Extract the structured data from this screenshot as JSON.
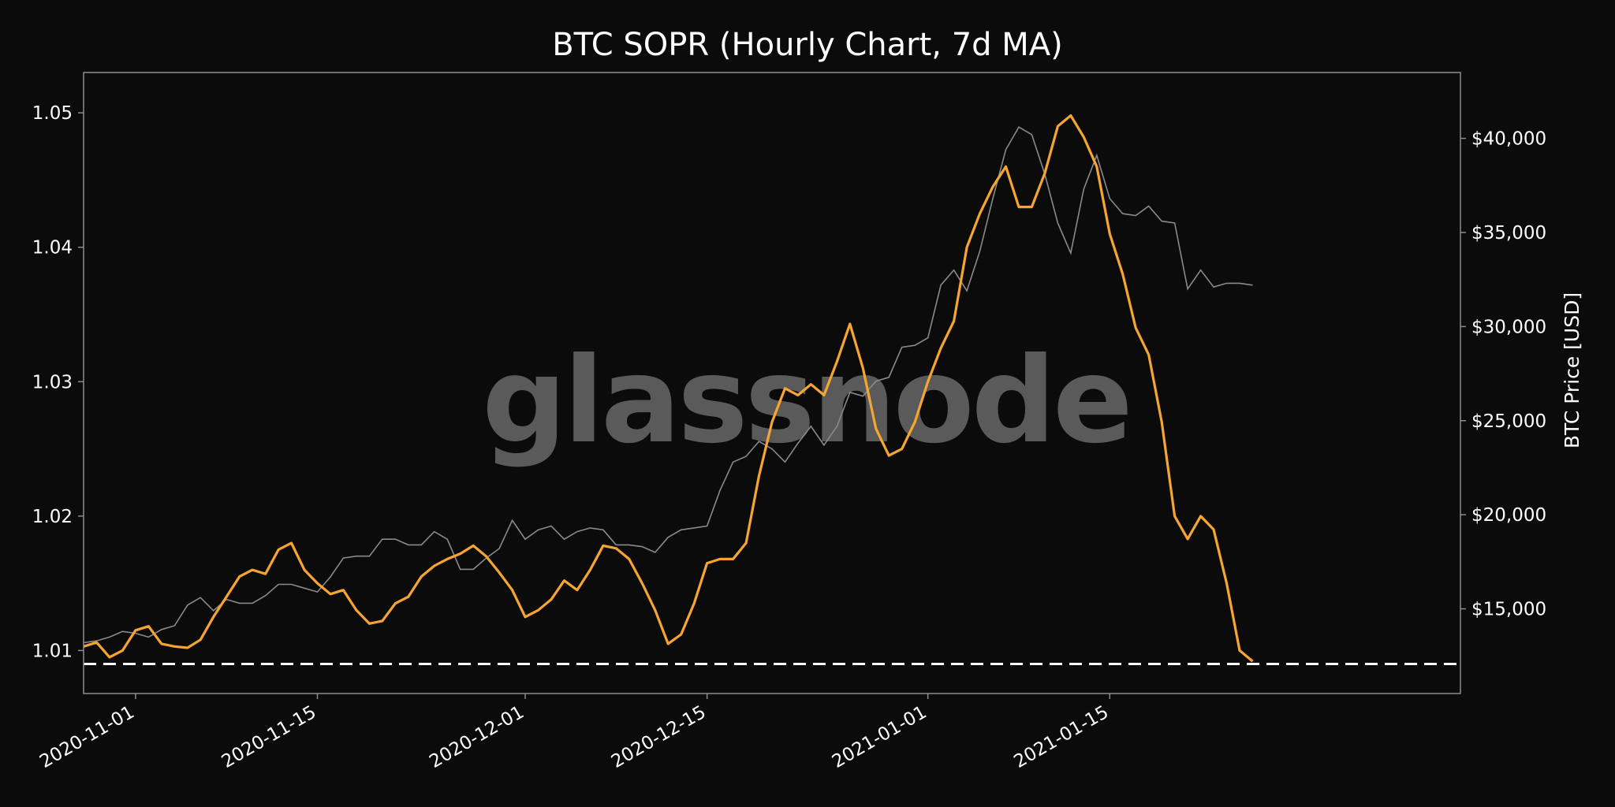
{
  "chart_data": {
    "type": "line",
    "title": "BTC SOPR (Hourly Chart, 7d MA)",
    "watermark": "glassnode",
    "y_left": {
      "ylim": [
        1.0068,
        1.053
      ],
      "ticks": [
        "1.01",
        "1.02",
        "1.03",
        "1.04",
        "1.05"
      ],
      "tick_values": [
        1.01,
        1.02,
        1.03,
        1.04,
        1.05
      ]
    },
    "y_right": {
      "label": "BTC Price [USD]",
      "ylim": [
        10500,
        43500
      ],
      "ticks": [
        "$15,000",
        "$20,000",
        "$25,000",
        "$30,000",
        "$35,000",
        "$40,000"
      ],
      "tick_values": [
        15000,
        20000,
        25000,
        30000,
        35000,
        40000
      ]
    },
    "x_axis": {
      "start": "2020-10-28",
      "end": "2021-02-11",
      "ticks": [
        "2020-11-01",
        "2020-11-15",
        "2020-12-01",
        "2020-12-15",
        "2021-01-01",
        "2021-01-15"
      ]
    },
    "reference_line": {
      "value": 1.009,
      "style": "dashed"
    },
    "colors": {
      "sopr": "#f7a531",
      "price": "#8a8a8a",
      "background": "#0b0b0b",
      "frame": "#8c8c8c",
      "text": "#ffffff"
    },
    "series": [
      {
        "axis": "left",
        "x": [
          "2020-10-28",
          "2020-10-29",
          "2020-10-30",
          "2020-10-31",
          "2020-11-01",
          "2020-11-02",
          "2020-11-03",
          "2020-11-04",
          "2020-11-05",
          "2020-11-06",
          "2020-11-07",
          "2020-11-08",
          "2020-11-09",
          "2020-11-10",
          "2020-11-11",
          "2020-11-12",
          "2020-11-13",
          "2020-11-14",
          "2020-11-15",
          "2020-11-16",
          "2020-11-17",
          "2020-11-18",
          "2020-11-19",
          "2020-11-20",
          "2020-11-21",
          "2020-11-22",
          "2020-11-23",
          "2020-11-24",
          "2020-11-25",
          "2020-11-26",
          "2020-11-27",
          "2020-11-28",
          "2020-11-29",
          "2020-11-30",
          "2020-12-01",
          "2020-12-02",
          "2020-12-03",
          "2020-12-04",
          "2020-12-05",
          "2020-12-06",
          "2020-12-07",
          "2020-12-08",
          "2020-12-09",
          "2020-12-10",
          "2020-12-11",
          "2020-12-12",
          "2020-12-13",
          "2020-12-14",
          "2020-12-15",
          "2020-12-16",
          "2020-12-17",
          "2020-12-18",
          "2020-12-19",
          "2020-12-20",
          "2020-12-21",
          "2020-12-22",
          "2020-12-23",
          "2020-12-24",
          "2020-12-25",
          "2020-12-26",
          "2020-12-27",
          "2020-12-28",
          "2020-12-29",
          "2020-12-30",
          "2020-12-31",
          "2021-01-01",
          "2021-01-02",
          "2021-01-03",
          "2021-01-04",
          "2021-01-05",
          "2021-01-06",
          "2021-01-07",
          "2021-01-08",
          "2021-01-09",
          "2021-01-10",
          "2021-01-11",
          "2021-01-12",
          "2021-01-13",
          "2021-01-14",
          "2021-01-15",
          "2021-01-16",
          "2021-01-17",
          "2021-01-18",
          "2021-01-19",
          "2021-01-20",
          "2021-01-21",
          "2021-01-22",
          "2021-01-23",
          "2021-01-24",
          "2021-01-25",
          "2021-01-26"
        ],
        "values": [
          1.0103,
          1.0106,
          1.0095,
          1.01,
          1.0115,
          1.0118,
          1.0105,
          1.0103,
          1.0102,
          1.0108,
          1.0125,
          1.014,
          1.0155,
          1.016,
          1.0157,
          1.0175,
          1.018,
          1.016,
          1.015,
          1.0142,
          1.0145,
          1.013,
          1.012,
          1.0122,
          1.0135,
          1.014,
          1.0155,
          1.0163,
          1.0168,
          1.0172,
          1.0178,
          1.017,
          1.0158,
          1.0145,
          1.0125,
          1.013,
          1.0138,
          1.0152,
          1.0145,
          1.016,
          1.0178,
          1.0176,
          1.0168,
          1.015,
          1.013,
          1.0105,
          1.0112,
          1.0135,
          1.0165,
          1.0168,
          1.0168,
          1.018,
          1.023,
          1.027,
          1.0295,
          1.029,
          1.0298,
          1.029,
          1.0315,
          1.0343,
          1.031,
          1.0265,
          1.0245,
          1.025,
          1.027,
          1.03,
          1.0325,
          1.0345,
          1.04,
          1.0425,
          1.0445,
          1.046,
          1.043,
          1.043,
          1.0455,
          1.049,
          1.0498,
          1.0482,
          1.046,
          1.041,
          1.038,
          1.034,
          1.032,
          1.027,
          1.02,
          1.0183,
          1.02,
          1.019,
          1.015,
          1.01,
          1.0092
        ]
      },
      {
        "axis": "right",
        "x": [
          "2020-10-28",
          "2020-10-29",
          "2020-10-30",
          "2020-10-31",
          "2020-11-01",
          "2020-11-02",
          "2020-11-03",
          "2020-11-04",
          "2020-11-05",
          "2020-11-06",
          "2020-11-07",
          "2020-11-08",
          "2020-11-09",
          "2020-11-10",
          "2020-11-11",
          "2020-11-12",
          "2020-11-13",
          "2020-11-14",
          "2020-11-15",
          "2020-11-16",
          "2020-11-17",
          "2020-11-18",
          "2020-11-19",
          "2020-11-20",
          "2020-11-21",
          "2020-11-22",
          "2020-11-23",
          "2020-11-24",
          "2020-11-25",
          "2020-11-26",
          "2020-11-27",
          "2020-11-28",
          "2020-11-29",
          "2020-11-30",
          "2020-12-01",
          "2020-12-02",
          "2020-12-03",
          "2020-12-04",
          "2020-12-05",
          "2020-12-06",
          "2020-12-07",
          "2020-12-08",
          "2020-12-09",
          "2020-12-10",
          "2020-12-11",
          "2020-12-12",
          "2020-12-13",
          "2020-12-14",
          "2020-12-15",
          "2020-12-16",
          "2020-12-17",
          "2020-12-18",
          "2020-12-19",
          "2020-12-20",
          "2020-12-21",
          "2020-12-22",
          "2020-12-23",
          "2020-12-24",
          "2020-12-25",
          "2020-12-26",
          "2020-12-27",
          "2020-12-28",
          "2020-12-29",
          "2020-12-30",
          "2020-12-31",
          "2021-01-01",
          "2021-01-02",
          "2021-01-03",
          "2021-01-04",
          "2021-01-05",
          "2021-01-06",
          "2021-01-07",
          "2021-01-08",
          "2021-01-09",
          "2021-01-10",
          "2021-01-11",
          "2021-01-12",
          "2021-01-13",
          "2021-01-14",
          "2021-01-15",
          "2021-01-16",
          "2021-01-17",
          "2021-01-18",
          "2021-01-19",
          "2021-01-20",
          "2021-01-21",
          "2021-01-22",
          "2021-01-23",
          "2021-01-24",
          "2021-01-25",
          "2021-01-26"
        ],
        "values": [
          13200,
          13300,
          13500,
          13800,
          13700,
          13500,
          13900,
          14100,
          15200,
          15600,
          14900,
          15500,
          15300,
          15300,
          15700,
          16300,
          16300,
          16100,
          15900,
          16700,
          17700,
          17800,
          17800,
          18700,
          18700,
          18400,
          18400,
          19100,
          18700,
          17100,
          17100,
          17700,
          18200,
          19700,
          18700,
          19200,
          19400,
          18700,
          19100,
          19300,
          19200,
          18400,
          18400,
          18300,
          18000,
          18800,
          19200,
          19300,
          19400,
          21300,
          22800,
          23100,
          23900,
          23500,
          22800,
          23800,
          24700,
          23700,
          24700,
          26500,
          26300,
          27100,
          27300,
          28900,
          29000,
          29400,
          32200,
          33000,
          31900,
          34000,
          36800,
          39400,
          40600,
          40200,
          38100,
          35500,
          33900,
          37300,
          39100,
          36800,
          36000,
          35900,
          36400,
          35600,
          35500,
          32000,
          33000,
          32100,
          32300,
          32300,
          32200
        ]
      }
    ]
  }
}
